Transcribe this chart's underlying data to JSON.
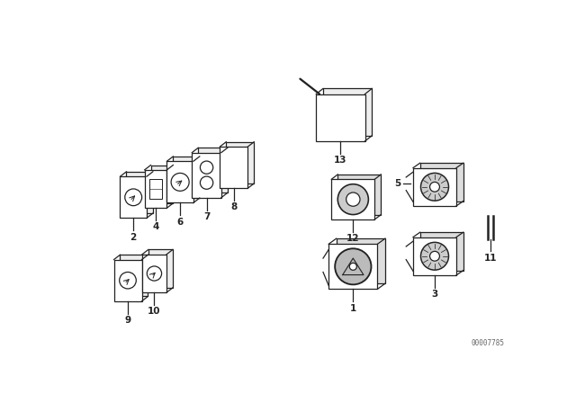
{
  "bg_color": "#ffffff",
  "line_color": "#222222",
  "watermark": "00007785",
  "lw": 0.9,
  "fig_w": 6.4,
  "fig_h": 4.48,
  "xlim": [
    0,
    640
  ],
  "ylim": [
    0,
    448
  ]
}
